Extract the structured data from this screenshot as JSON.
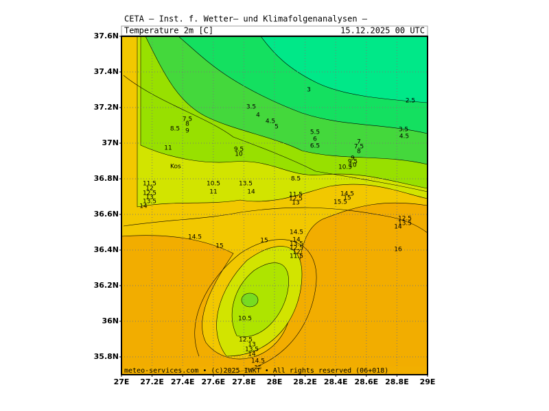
{
  "header": {
    "institute": "CETA – Inst. f. Wetter– und Klimafolgenanalysen –",
    "variable": "Temperature 2m [C]",
    "datetime": "15.12.2025 00 UTC"
  },
  "map": {
    "lat_labels": [
      "37.6N",
      "37.4N",
      "37.2N",
      "37N",
      "36.8N",
      "36.6N",
      "36.4N",
      "36.2N",
      "36N",
      "35.8N"
    ],
    "lon_labels": [
      "27E",
      "27.2E",
      "27.4E",
      "27.6E",
      "27.8E",
      "28E",
      "28.2E",
      "28.4E",
      "28.6E",
      "28.8E",
      "29E"
    ],
    "place_label": "Kos",
    "contour_labels": [
      "3",
      "3.5",
      "4",
      "4.5",
      "5",
      "2.5",
      "3.5",
      "4.5",
      "5.5",
      "6",
      "6.5",
      "7",
      "7.5",
      "8",
      "7.5",
      "8",
      "8.5",
      "9",
      "11",
      "9.5",
      "10",
      "9",
      "9.5",
      "10",
      "10.5",
      "8.5",
      "11.5",
      "12",
      "12.5",
      "13",
      "13.5",
      "14",
      "10.5",
      "11",
      "13.5",
      "14",
      "11.5",
      "12.5",
      "13",
      "14.5",
      "15",
      "15.5",
      "12.5",
      "13.5",
      "14",
      "14.5",
      "14",
      "13.5",
      "12.5",
      "12",
      "11.5",
      "14.5",
      "15",
      "15",
      "16",
      "10.5",
      "12.5",
      "13",
      "13.5",
      "14",
      "14.5",
      "15"
    ]
  },
  "footer": "meteo-services.com • (c)2025 IWKT • All rights reserved (06+018)"
}
